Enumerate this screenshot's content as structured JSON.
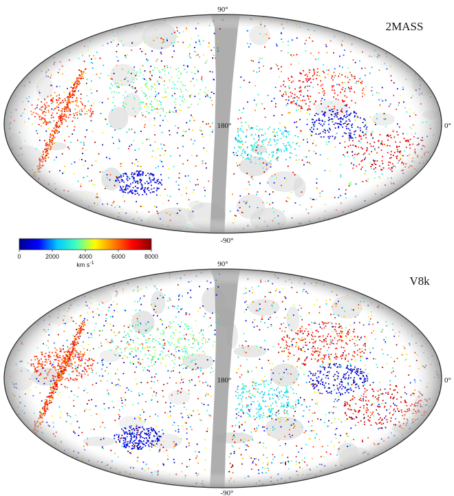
{
  "figure": {
    "maps": [
      {
        "name": "2MASS",
        "labels": {
          "top": "90°",
          "center": "180°",
          "right": "0°",
          "bottom": "-90°"
        }
      },
      {
        "name": "V8k",
        "labels": {
          "top": "90°",
          "center": "180°",
          "right": "0°",
          "bottom": "-90°"
        }
      }
    ],
    "colorbar": {
      "ticks": [
        "0",
        "2000",
        "4000",
        "6000",
        "8000"
      ],
      "unit": "km s",
      "unit_exp": "-1",
      "range": [
        0,
        8000
      ],
      "colors": [
        "#00008b",
        "#0000ff",
        "#00c8ff",
        "#40ffbf",
        "#ffff00",
        "#ff8000",
        "#ff0000",
        "#8b0000"
      ]
    }
  },
  "chart_data": [
    {
      "type": "scatter",
      "title": "2MASS",
      "projection": "aitoff",
      "color_scale": "velocity (km s^-1), 0–8000",
      "axis_labels": [
        "90°",
        "180°",
        "0°",
        "-90°"
      ]
    },
    {
      "type": "scatter",
      "title": "V8k",
      "projection": "aitoff",
      "color_scale": "velocity (km s^-1), 0–8000",
      "axis_labels": [
        "90°",
        "180°",
        "0°",
        "-90°"
      ]
    }
  ]
}
